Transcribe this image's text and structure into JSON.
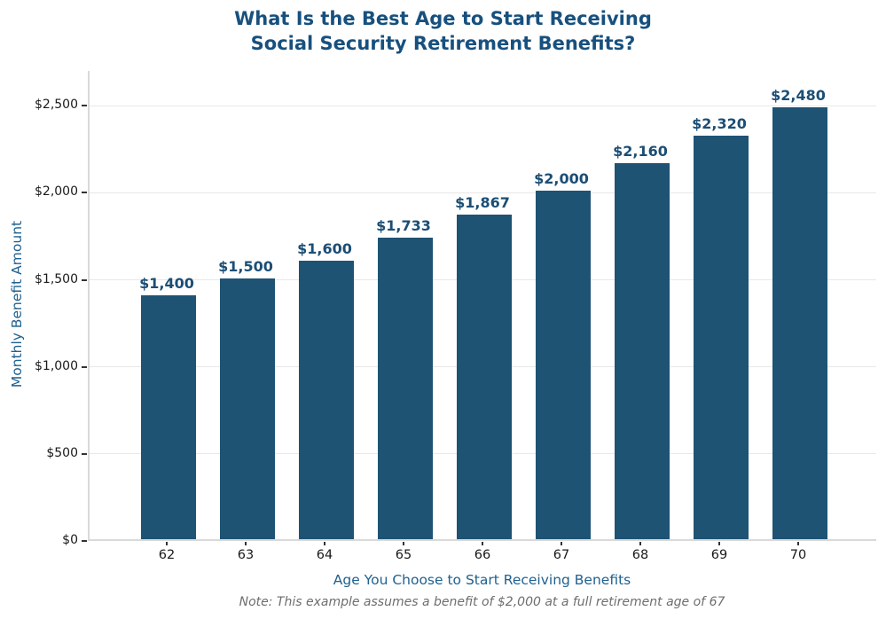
{
  "header": {
    "title_line1": "What Is the Best Age to Start Receiving",
    "title_line2": "Social Security Retirement Benefits?"
  },
  "chart_data": {
    "type": "bar",
    "title": "What Is the Best Age to Start Receiving Social Security Retirement Benefits?",
    "xlabel": "Age You Choose to Start Receiving Benefits",
    "ylabel": "Monthly Benefit Amount",
    "note": "Note: This example assumes a benefit of $2,000 at a full retirement age of 67",
    "categories": [
      "62",
      "63",
      "64",
      "65",
      "66",
      "67",
      "68",
      "69",
      "70"
    ],
    "values": [
      1400,
      1500,
      1600,
      1733,
      1867,
      2000,
      2160,
      2320,
      2480
    ],
    "bar_labels": [
      "$1,400",
      "$1,500",
      "$1,600",
      "$1,733",
      "$1,867",
      "$2,000",
      "$2,160",
      "$2,320",
      "$2,480"
    ],
    "ylim": [
      0,
      2700
    ],
    "yticks": [
      {
        "value": 0,
        "label": "$0"
      },
      {
        "value": 500,
        "label": "$500"
      },
      {
        "value": 1000,
        "label": "$1,000"
      },
      {
        "value": 1500,
        "label": "$1,500"
      },
      {
        "value": 2000,
        "label": "$2,000"
      },
      {
        "value": 2500,
        "label": "$2,500"
      }
    ],
    "grid": "horizontal",
    "legend": "none",
    "colors": {
      "bar": "#1e5374",
      "title": "#17507e",
      "value_label": "#1b4e75",
      "axis_title": "#20618f",
      "tick_label": "#1a1a1a",
      "tick_mark": "#333333",
      "note": "#6e6e6e",
      "gridline": "#e8e8e8",
      "spine": "#d9d9d9",
      "background": "#ffffff"
    }
  }
}
